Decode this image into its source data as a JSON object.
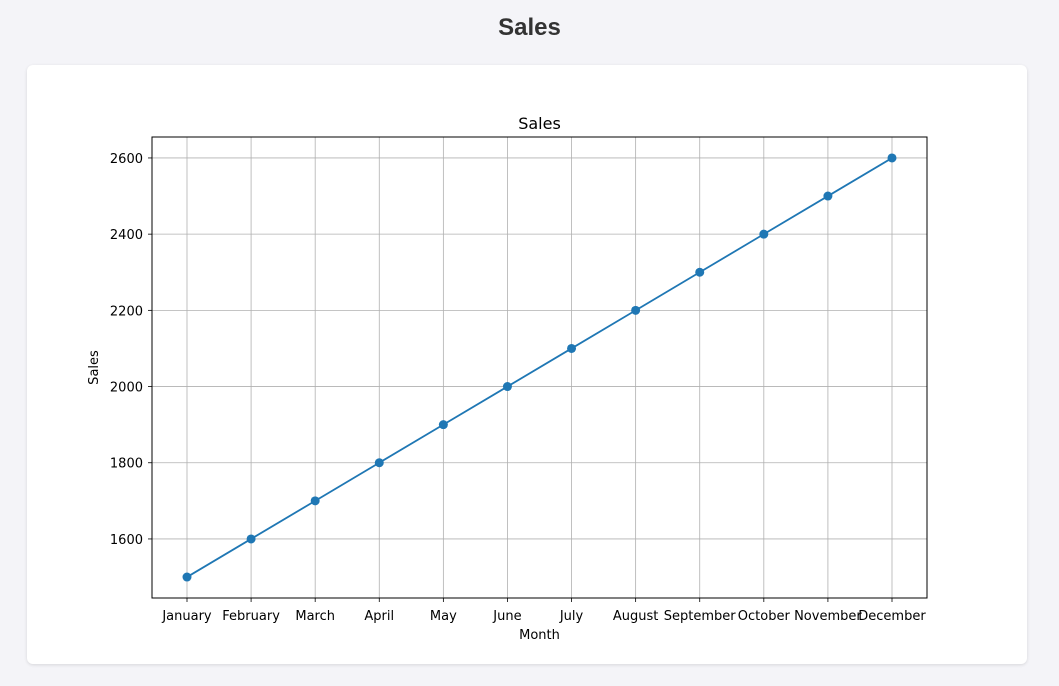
{
  "page": {
    "title": "Sales"
  },
  "chart_data": {
    "type": "line",
    "title": "Sales",
    "xlabel": "Month",
    "ylabel": "Sales",
    "categories": [
      "January",
      "February",
      "March",
      "April",
      "May",
      "June",
      "July",
      "August",
      "September",
      "October",
      "November",
      "December"
    ],
    "series": [
      {
        "values": [
          1500,
          1600,
          1700,
          1800,
          1900,
          2000,
          2100,
          2200,
          2300,
          2400,
          2500,
          2600
        ],
        "color": "#1f77b4",
        "marker": "circle"
      }
    ],
    "yticks": [
      1600,
      1800,
      2000,
      2200,
      2400,
      2600
    ],
    "ylim": [
      1445,
      2655
    ],
    "grid": true
  }
}
